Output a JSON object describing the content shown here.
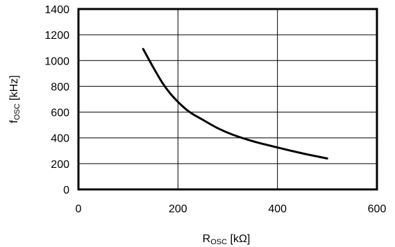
{
  "chart_data": {
    "type": "line",
    "title": "",
    "xlabel": {
      "main": "R",
      "sub": "OSC",
      "unit": " [kΩ]"
    },
    "ylabel": {
      "main": "f",
      "sub": "OSC",
      "unit": " [kHz]"
    },
    "xlim": [
      0,
      600
    ],
    "ylim": [
      0,
      1400
    ],
    "x_ticks": [
      0,
      200,
      400,
      600
    ],
    "y_ticks": [
      0,
      200,
      400,
      600,
      800,
      1000,
      1200,
      1400
    ],
    "grid": true,
    "line_color": "#000000",
    "series": [
      {
        "x": [
          130,
          150,
          170,
          190,
          220,
          250,
          280,
          310,
          350,
          400,
          450,
          500
        ],
        "y": [
          1090,
          950,
          820,
          720,
          610,
          540,
          475,
          425,
          375,
          325,
          280,
          240
        ]
      }
    ]
  }
}
